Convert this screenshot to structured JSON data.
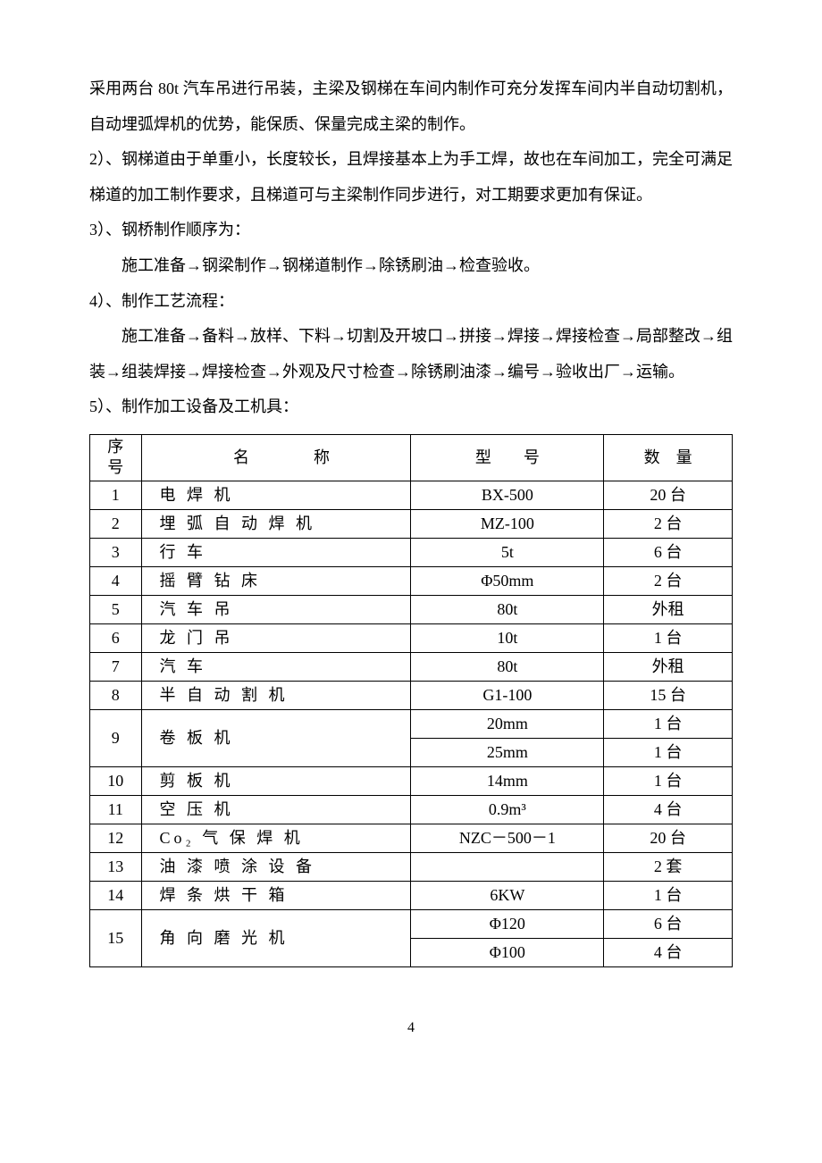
{
  "paragraphs": {
    "p1": "采用两台 80t 汽车吊进行吊装，主梁及钢梯在车间内制作可充分发挥车间内半自动切割机，自动埋弧焊机的优势，能保质、保量完成主梁的制作。",
    "p2": "2）、钢梯道由于单重小，长度较长，且焊接基本上为手工焊，故也在车间加工，完全可满足梯道的加工制作要求，且梯道可与主梁制作同步进行，对工期要求更加有保证。",
    "p3": "3）、钢桥制作顺序为：",
    "p3_sub": "施工准备→钢梁制作→钢梯道制作→除锈刷油→检查验收。",
    "p4": "4）、制作工艺流程：",
    "p4_sub": "施工准备→备料→放样、下料→切割及开坡口→拼接→焊接→焊接检查→局部整改→组装→组装焊接→焊接检查→外观及尺寸检查→除锈刷油漆→编号→验收出厂→运输。",
    "p5": "5）、制作加工设备及工机具："
  },
  "table": {
    "headers": {
      "seq1": "序",
      "seq2": "号",
      "name": "名　　　　称",
      "model": "型　　号",
      "qty": "数　量"
    },
    "rows": [
      {
        "seq": "1",
        "name": "电 焊 机",
        "model": "BX-500",
        "qty": "20 台"
      },
      {
        "seq": "2",
        "name": "埋 弧 自 动 焊 机",
        "model": "MZ-100",
        "qty": "2 台"
      },
      {
        "seq": "3",
        "name": "行 车",
        "model": "5t",
        "qty": "6 台"
      },
      {
        "seq": "4",
        "name": "摇 臂 钻 床",
        "model": "Φ50mm",
        "qty": "2 台"
      },
      {
        "seq": "5",
        "name": "汽 车 吊",
        "model": "80t",
        "qty": "外租"
      },
      {
        "seq": "6",
        "name": "龙 门 吊",
        "model": "10t",
        "qty": "1 台"
      },
      {
        "seq": "7",
        "name": "汽 车",
        "model": "80t",
        "qty": "外租"
      },
      {
        "seq": "8",
        "name": "半 自 动 割 机",
        "model": "G1-100",
        "qty": "15 台"
      },
      {
        "seq": "9",
        "name": "卷 板 机",
        "model": "20mm",
        "qty": "1 台",
        "rowspan": 2
      },
      {
        "seq": "",
        "name": "",
        "model": "25mm",
        "qty": "1 台",
        "merged": true
      },
      {
        "seq": "10",
        "name": "剪 板 机",
        "model": "14mm",
        "qty": "1 台"
      },
      {
        "seq": "11",
        "name": "空 压 机",
        "model": "0.9m³",
        "qty": "4 台"
      },
      {
        "seq": "12",
        "name": "Co₂ 气 保 焊 机",
        "model": "NZC－500－1",
        "qty": "20 台"
      },
      {
        "seq": "13",
        "name": "油 漆 喷 涂 设 备",
        "model": "",
        "qty": "2 套"
      },
      {
        "seq": "14",
        "name": "焊 条 烘 干 箱",
        "model": "6KW",
        "qty": "1 台"
      },
      {
        "seq": "15",
        "name": "角 向 磨 光 机",
        "model": "Φ120",
        "qty": "6 台",
        "rowspan": 2
      },
      {
        "seq": "",
        "name": "",
        "model": "Φ100",
        "qty": "4 台",
        "merged": true
      }
    ]
  },
  "pageNumber": "4"
}
